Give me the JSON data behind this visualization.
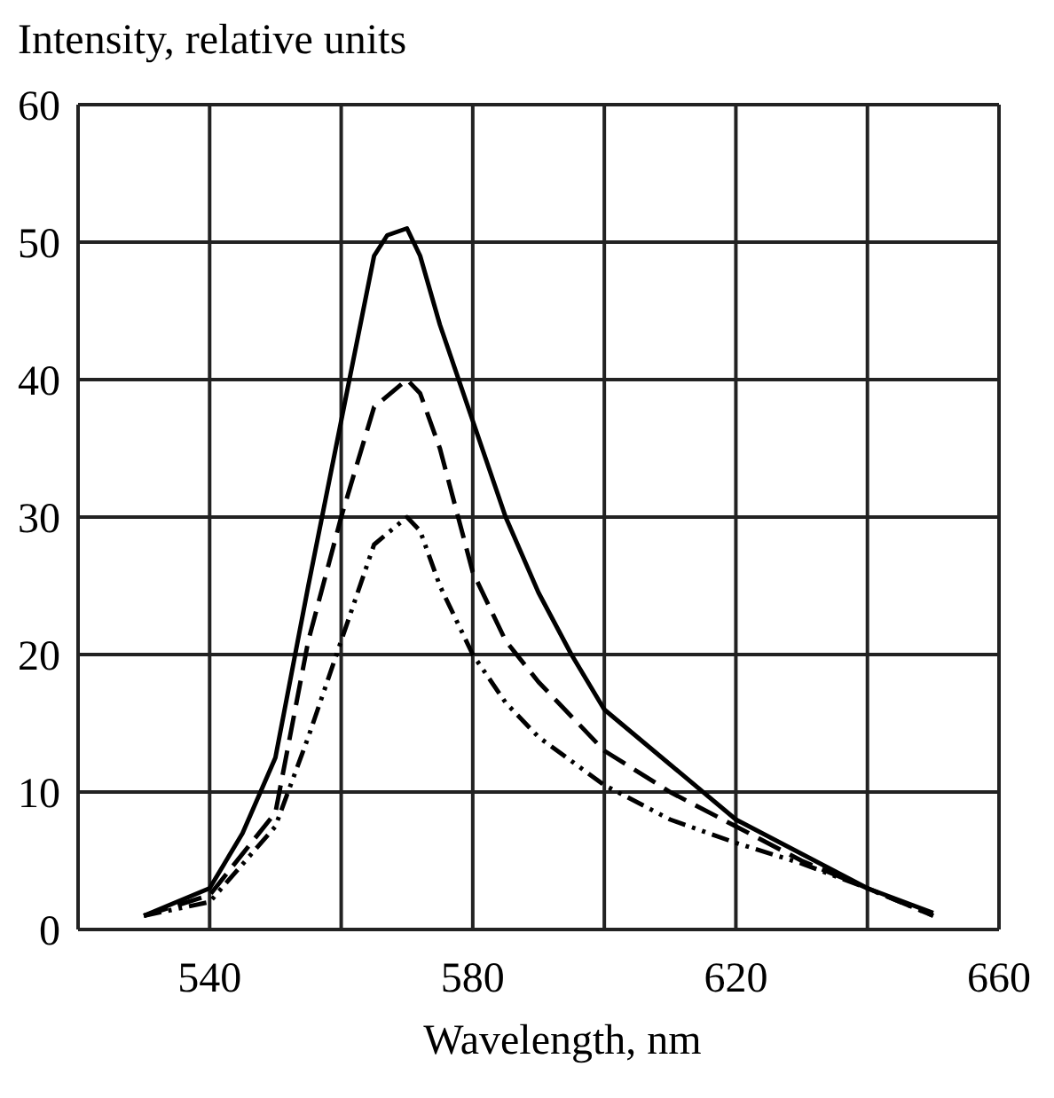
{
  "chart_data": {
    "type": "line",
    "ylabel": "Intensity, relative units",
    "xlabel": "Wavelength, nm",
    "xlim": [
      520,
      660
    ],
    "xticks": [
      540,
      {
        "value": 560,
        "label": null
      },
      580,
      {
        "value": 600,
        "label": null
      },
      620,
      {
        "value": 640,
        "label": null
      },
      660
    ],
    "ylim": [
      0,
      60
    ],
    "yticks": [
      0,
      10,
      20,
      30,
      40,
      50,
      60
    ],
    "grid": true,
    "marker": "none",
    "series": [
      {
        "color": "#000000",
        "line_style": "solid",
        "x": [
          530,
          540,
          545,
          550,
          555,
          560,
          565,
          567,
          570,
          572,
          575,
          580,
          585,
          590,
          595,
          600,
          610,
          620,
          630,
          640,
          650
        ],
        "values": [
          1,
          3,
          7,
          12.5,
          25,
          37,
          49,
          50.5,
          51,
          49,
          44,
          37,
          30,
          24.5,
          20,
          16,
          12,
          8,
          5.5,
          3,
          1.2
        ]
      },
      {
        "color": "#000000",
        "line_style": "dashed",
        "x": [
          530,
          540,
          550,
          555,
          560,
          565,
          570,
          572,
          575,
          580,
          585,
          590,
          600,
          610,
          620,
          630,
          640,
          650
        ],
        "values": [
          1,
          2.5,
          8.5,
          21,
          30,
          38,
          40,
          39,
          35,
          26,
          21,
          18,
          13,
          10,
          7.5,
          5,
          3,
          1
        ]
      },
      {
        "color": "#000000",
        "line_style": "dotted",
        "x": [
          530,
          540,
          550,
          555,
          560,
          565,
          570,
          572,
          575,
          580,
          585,
          590,
          600,
          610,
          620,
          630,
          640,
          650
        ],
        "values": [
          1,
          2,
          7.5,
          14,
          21,
          28,
          30,
          29,
          25,
          20,
          16.5,
          14,
          10.5,
          8,
          6.3,
          4.8,
          3,
          1
        ]
      }
    ]
  }
}
